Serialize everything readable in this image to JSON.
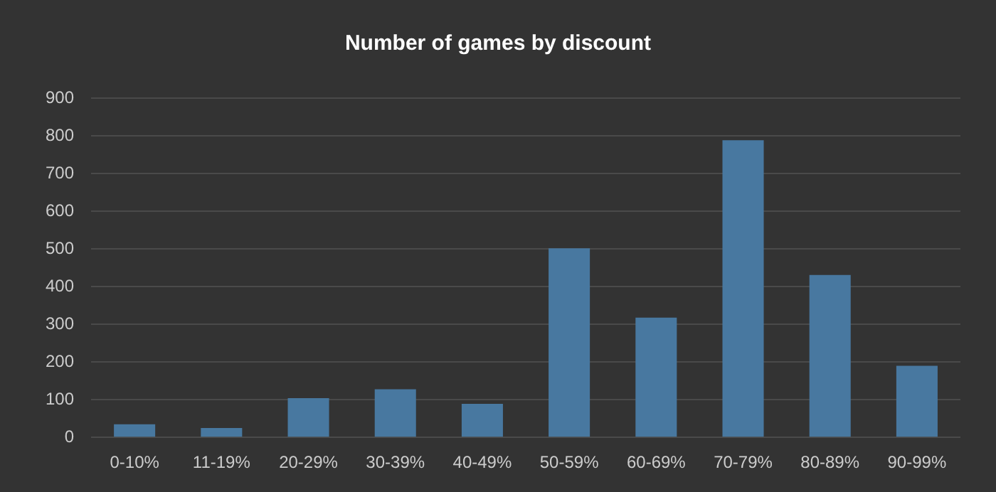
{
  "chart_data": {
    "type": "bar",
    "title": "Number of games by discount",
    "categories": [
      "0-10%",
      "11-19%",
      "20-29%",
      "30-39%",
      "40-49%",
      "50-59%",
      "60-69%",
      "70-79%",
      "80-89%",
      "90-99%"
    ],
    "values": [
      35,
      25,
      104,
      128,
      89,
      502,
      318,
      789,
      431,
      190
    ],
    "color": "#4878a0",
    "ylim": [
      0,
      900
    ],
    "yticks": [
      0,
      100,
      200,
      300,
      400,
      500,
      600,
      700,
      800,
      900
    ],
    "grid": "y",
    "legend": false
  }
}
